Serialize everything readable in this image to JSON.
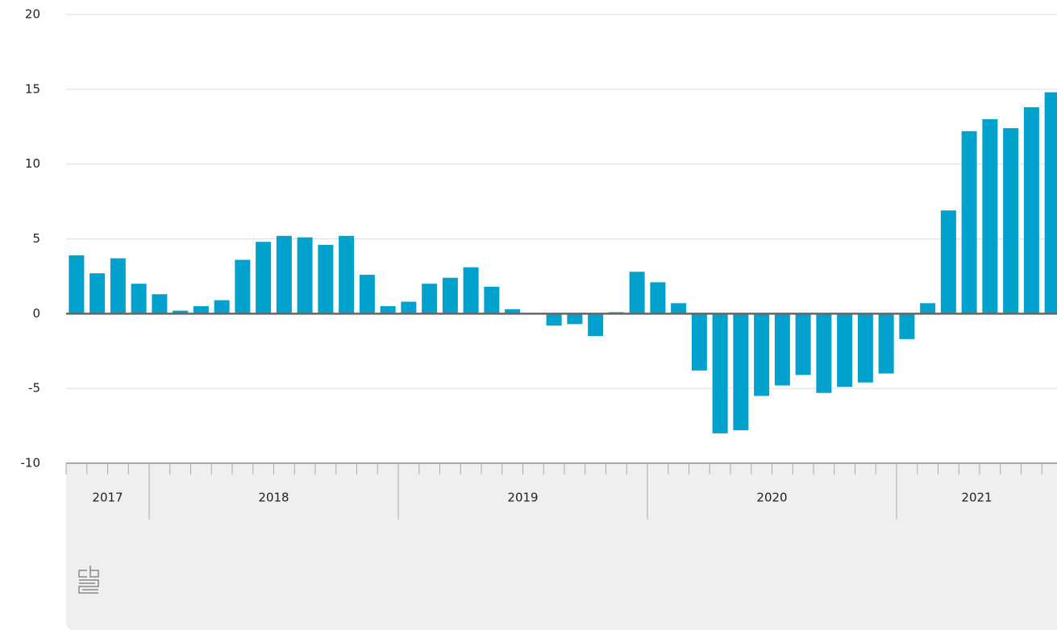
{
  "chart_data": {
    "type": "bar",
    "categories": [
      null,
      null,
      null,
      null,
      null,
      null,
      null,
      null,
      null,
      null,
      null,
      null,
      null,
      null,
      null,
      null,
      null,
      null,
      null,
      null,
      null,
      null,
      null,
      null,
      null,
      null,
      null,
      null,
      null,
      null,
      null,
      null,
      null,
      null,
      null,
      null,
      null,
      null,
      null,
      null,
      null,
      null,
      null,
      null,
      null,
      null,
      null,
      null
    ],
    "values": [
      3.9,
      2.7,
      3.7,
      2.0,
      1.3,
      0.2,
      0.5,
      0.9,
      3.6,
      4.8,
      5.2,
      5.1,
      4.6,
      5.2,
      2.6,
      0.5,
      0.8,
      2.0,
      2.4,
      3.1,
      1.8,
      0.3,
      0.0,
      -0.8,
      -0.7,
      -1.5,
      0.1,
      2.8,
      2.1,
      0.7,
      -3.8,
      -8.0,
      -7.8,
      -5.5,
      -4.8,
      -4.1,
      -5.3,
      -4.9,
      -4.6,
      -4.0,
      -1.7,
      0.7,
      6.9,
      12.2,
      13.0,
      12.4,
      13.8,
      14.8
    ],
    "year_groups": [
      {
        "label": "2017",
        "months": 4
      },
      {
        "label": "2018",
        "months": 12
      },
      {
        "label": "2019",
        "months": 12
      },
      {
        "label": "2020",
        "months": 12
      },
      {
        "label": "2021",
        "months": 8
      }
    ],
    "color": "#00a1cd",
    "ylim": [
      -10,
      20
    ],
    "yticks": [
      -10,
      -5,
      0,
      5,
      10,
      15,
      20
    ],
    "grid": true
  }
}
